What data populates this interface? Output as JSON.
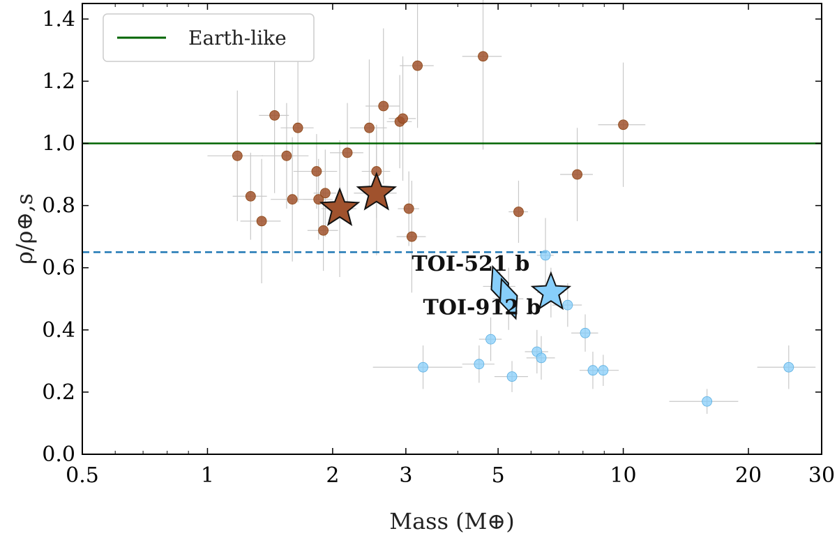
{
  "chart_data": {
    "type": "scatter",
    "title": "",
    "xlabel": "Mass (M⊕)",
    "ylabel": "ρ/ρ⊕,s",
    "xscale": "log",
    "xlim": [
      0.5,
      30
    ],
    "ylim": [
      0.0,
      1.45
    ],
    "x_ticks": [
      0.5,
      1,
      2,
      3,
      5,
      10,
      20,
      30
    ],
    "x_tick_labels": [
      "0.5",
      "1",
      "2",
      "3",
      "5",
      "10",
      "20",
      "30"
    ],
    "y_ticks": [
      0.0,
      0.2,
      0.4,
      0.6,
      0.8,
      1.0,
      1.2,
      1.4
    ],
    "y_tick_labels": [
      "0.0",
      "0.2",
      "0.4",
      "0.6",
      "0.8",
      "1.0",
      "1.2",
      "1.4"
    ],
    "grid": false,
    "legend": {
      "position": "top-left",
      "entries": [
        {
          "label": "Earth-like",
          "color": "#006400",
          "style": "solid line"
        }
      ]
    },
    "reference_lines": [
      {
        "name": "Earth-like",
        "y": 1.0,
        "color": "#006400",
        "style": "solid"
      },
      {
        "name": "threshold",
        "y": 0.65,
        "color": "#1f77b4",
        "style": "dashed"
      }
    ],
    "colors": {
      "rocky": "#a0522d",
      "low_density": "#87cefa",
      "error_bar": "#c8c8c8"
    },
    "series": [
      {
        "group": "rocky",
        "color": "#a0522d",
        "points": [
          {
            "x": 1.18,
            "y": 0.96,
            "xerr": 0.18,
            "yerr": 0.21
          },
          {
            "x": 1.27,
            "y": 0.83,
            "xerr": 0.12,
            "yerr": 0.14
          },
          {
            "x": 1.35,
            "y": 0.75,
            "xerr": 0.15,
            "yerr": 0.2
          },
          {
            "x": 1.45,
            "y": 1.09,
            "xerr": 0.12,
            "yerr": 0.25
          },
          {
            "x": 1.55,
            "y": 0.96,
            "xerr": 0.2,
            "yerr": 0.17
          },
          {
            "x": 1.6,
            "y": 0.82,
            "xerr": 0.18,
            "yerr": 0.2
          },
          {
            "x": 1.65,
            "y": 1.05,
            "xerr": 0.15,
            "yerr": 0.24
          },
          {
            "x": 1.83,
            "y": 0.91,
            "xerr": 0.22,
            "yerr": 0.12
          },
          {
            "x": 1.85,
            "y": 0.82,
            "xerr": 0.15,
            "yerr": 0.13
          },
          {
            "x": 1.9,
            "y": 0.72,
            "xerr": 0.16,
            "yerr": 0.13
          },
          {
            "x": 1.92,
            "y": 0.84,
            "xerr": 0.12,
            "yerr": 0.14
          },
          {
            "x": 2.17,
            "y": 0.97,
            "xerr": 0.2,
            "yerr": 0.16
          },
          {
            "x": 2.45,
            "y": 1.05,
            "xerr": 0.25,
            "yerr": 0.22
          },
          {
            "x": 2.55,
            "y": 0.91,
            "xerr": 0.2,
            "yerr": 0.15
          },
          {
            "x": 2.65,
            "y": 1.12,
            "xerr": 0.25,
            "yerr": 0.25
          },
          {
            "x": 2.9,
            "y": 1.07,
            "xerr": 0.2,
            "yerr": 0.15
          },
          {
            "x": 2.95,
            "y": 1.08,
            "xerr": 0.22,
            "yerr": 0.2
          },
          {
            "x": 3.05,
            "y": 0.79,
            "xerr": 0.18,
            "yerr": 0.12
          },
          {
            "x": 3.1,
            "y": 0.7,
            "xerr": 0.25,
            "yerr": 0.18
          },
          {
            "x": 3.2,
            "y": 1.25,
            "xerr": 0.3,
            "yerr": 0.2
          },
          {
            "x": 4.6,
            "y": 1.28,
            "xerr": 0.5,
            "yerr": 0.3
          },
          {
            "x": 5.6,
            "y": 0.78,
            "xerr": 0.3,
            "yerr": 0.1
          },
          {
            "x": 7.75,
            "y": 0.9,
            "xerr": 0.7,
            "yerr": 0.15
          },
          {
            "x": 10.0,
            "y": 1.06,
            "xerr": 1.3,
            "yerr": 0.2
          }
        ]
      },
      {
        "group": "low_density",
        "color": "#87cefa",
        "points": [
          {
            "x": 3.3,
            "y": 0.28,
            "xerr": 0.8,
            "yerr": 0.07
          },
          {
            "x": 4.5,
            "y": 0.29,
            "xerr": 0.4,
            "yerr": 0.06
          },
          {
            "x": 4.8,
            "y": 0.37,
            "xerr": 0.3,
            "yerr": 0.07
          },
          {
            "x": 5.4,
            "y": 0.25,
            "xerr": 0.5,
            "yerr": 0.05
          },
          {
            "x": 6.2,
            "y": 0.33,
            "xerr": 0.4,
            "yerr": 0.07
          },
          {
            "x": 6.35,
            "y": 0.31,
            "xerr": 0.5,
            "yerr": 0.07
          },
          {
            "x": 6.5,
            "y": 0.64,
            "xerr": 0.3,
            "yerr": 0.12
          },
          {
            "x": 7.35,
            "y": 0.48,
            "xerr": 0.6,
            "yerr": 0.07
          },
          {
            "x": 8.1,
            "y": 0.39,
            "xerr": 0.6,
            "yerr": 0.06
          },
          {
            "x": 8.45,
            "y": 0.27,
            "xerr": 0.6,
            "yerr": 0.06
          },
          {
            "x": 8.95,
            "y": 0.27,
            "xerr": 0.8,
            "yerr": 0.05
          },
          {
            "x": 15.9,
            "y": 0.17,
            "xerr": 3.0,
            "yerr": 0.04
          },
          {
            "x": 25.0,
            "y": 0.28,
            "xerr": 4.0,
            "yerr": 0.07
          }
        ]
      }
    ],
    "highlighted": [
      {
        "name": "rocky-star-1",
        "marker": "star",
        "x": 2.08,
        "y": 0.79,
        "color": "#a0522d",
        "xerr": 0.2,
        "yerr": 0.22
      },
      {
        "name": "rocky-star-2",
        "marker": "star",
        "x": 2.55,
        "y": 0.84,
        "color": "#a0522d",
        "xerr": 0.3,
        "yerr": 0.2
      },
      {
        "name": "low-density-star",
        "marker": "star",
        "x": 6.7,
        "y": 0.52,
        "color": "#87cefa",
        "xerr": 0.5,
        "yerr": 0.08
      },
      {
        "name": "TOI-521 b",
        "marker": "diamond",
        "x": 5.05,
        "y": 0.54,
        "color": "#87cefa",
        "xerr": 0.45,
        "yerr": 0.08
      },
      {
        "name": "TOI-912 b",
        "marker": "diamond",
        "x": 5.3,
        "y": 0.5,
        "color": "#87cefa",
        "xerr": 0.45,
        "yerr": 0.1
      }
    ],
    "annotations": [
      {
        "text": "TOI-521 b",
        "x": 3.1,
        "y": 0.59
      },
      {
        "text": "TOI-912 b",
        "x": 3.3,
        "y": 0.45
      }
    ]
  }
}
